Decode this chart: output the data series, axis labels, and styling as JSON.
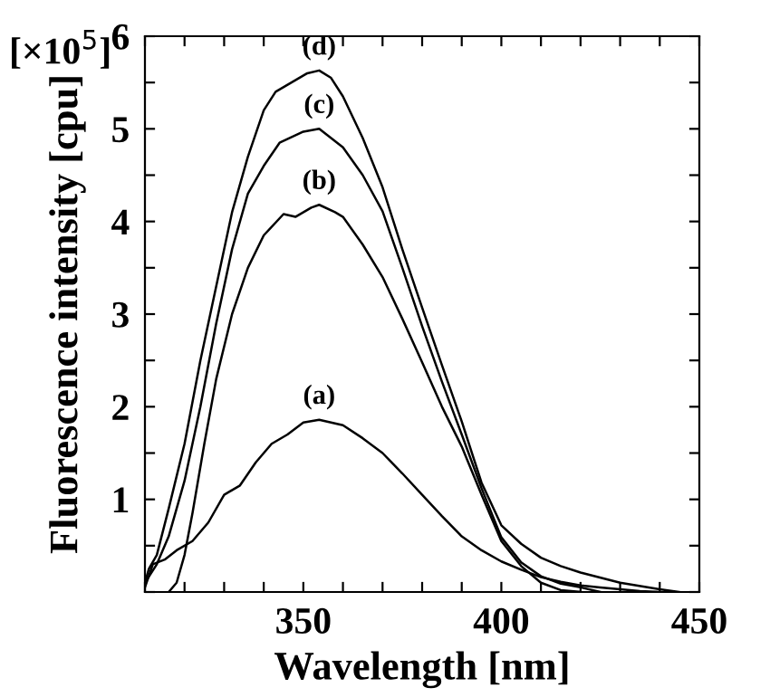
{
  "chart_data": {
    "type": "line",
    "xlabel": "Wavelength [nm]",
    "ylabel": "Fluorescence intensity [cpu]",
    "annotations": [
      "[×10$^{5}$]"
    ],
    "xlim": [
      310,
      450
    ],
    "ylim": [
      0,
      6
    ],
    "xticks": [
      {
        "value": 310,
        "label": null
      },
      {
        "value": 320,
        "label": null
      },
      {
        "value": 330,
        "label": null
      },
      {
        "value": 340,
        "label": null
      },
      350,
      {
        "value": 360,
        "label": null
      },
      {
        "value": 370,
        "label": null
      },
      {
        "value": 380,
        "label": null
      },
      {
        "value": 390,
        "label": null
      },
      400,
      {
        "value": 410,
        "label": null
      },
      {
        "value": 420,
        "label": null
      },
      {
        "value": 430,
        "label": null
      },
      {
        "value": 440,
        "label": null
      },
      450
    ],
    "yticks": [
      {
        "value": 0,
        "label": null
      },
      {
        "value": 0.5,
        "label": null
      },
      1,
      {
        "value": 1.5,
        "label": null
      },
      2,
      {
        "value": 2.5,
        "label": null
      },
      3,
      {
        "value": 3.5,
        "label": null
      },
      4,
      {
        "value": 4.5,
        "label": null
      },
      5,
      {
        "value": 5.5,
        "label": null
      },
      6
    ],
    "grid": false,
    "marker": "none",
    "line_style": "solid",
    "series": [
      {
        "name": "(a)",
        "color": "#000000",
        "x": [
          310,
          312,
          315,
          318,
          322,
          326,
          330,
          334,
          338,
          342,
          346,
          350,
          354,
          360,
          365,
          370,
          375,
          380,
          385,
          390,
          395,
          400,
          405,
          410,
          415,
          420,
          425,
          430,
          435,
          440
        ],
        "values": [
          0.05,
          0.3,
          0.35,
          0.45,
          0.55,
          0.75,
          1.05,
          1.15,
          1.4,
          1.6,
          1.7,
          1.83,
          1.86,
          1.8,
          1.66,
          1.5,
          1.28,
          1.05,
          0.82,
          0.6,
          0.45,
          0.33,
          0.24,
          0.16,
          0.11,
          0.07,
          0.05,
          0.03,
          0.01,
          0
        ]
      },
      {
        "name": "(b)",
        "color": "#000000",
        "x": [
          316,
          318,
          320,
          322,
          325,
          328,
          332,
          336,
          340,
          345,
          348,
          352,
          354,
          358,
          360,
          365,
          370,
          375,
          380,
          385,
          390,
          395,
          400,
          405,
          410,
          415,
          420
        ],
        "values": [
          0,
          0.1,
          0.4,
          0.85,
          1.6,
          2.3,
          3.0,
          3.5,
          3.85,
          4.08,
          4.05,
          4.15,
          4.18,
          4.1,
          4.05,
          3.75,
          3.4,
          2.95,
          2.48,
          2.0,
          1.57,
          1.05,
          0.55,
          0.28,
          0.1,
          0.02,
          0
        ]
      },
      {
        "name": "(c)",
        "color": "#000000",
        "x": [
          310,
          313,
          316,
          320,
          324,
          328,
          332,
          336,
          340,
          344,
          350,
          354,
          360,
          365,
          370,
          375,
          380,
          385,
          390,
          395,
          400,
          405,
          410,
          415,
          420,
          425
        ],
        "values": [
          0.1,
          0.3,
          0.6,
          1.2,
          2.0,
          2.9,
          3.7,
          4.3,
          4.6,
          4.85,
          4.97,
          5.0,
          4.8,
          4.5,
          4.11,
          3.5,
          2.87,
          2.27,
          1.7,
          1.12,
          0.59,
          0.32,
          0.17,
          0.09,
          0.05,
          0
        ]
      },
      {
        "name": "(d)",
        "color": "#000000",
        "x": [
          310,
          311,
          313,
          316,
          320,
          324,
          328,
          332,
          336,
          340,
          343,
          347,
          351,
          354,
          357,
          360,
          365,
          370,
          375,
          380,
          385,
          390,
          395,
          400,
          405,
          410,
          415,
          420,
          430,
          440,
          445
        ],
        "values": [
          0.1,
          0.25,
          0.4,
          0.9,
          1.6,
          2.5,
          3.3,
          4.1,
          4.7,
          5.2,
          5.4,
          5.5,
          5.6,
          5.63,
          5.55,
          5.35,
          4.9,
          4.37,
          3.7,
          3.07,
          2.45,
          1.84,
          1.18,
          0.72,
          0.52,
          0.37,
          0.28,
          0.21,
          0.1,
          0.03,
          0
        ]
      }
    ]
  }
}
